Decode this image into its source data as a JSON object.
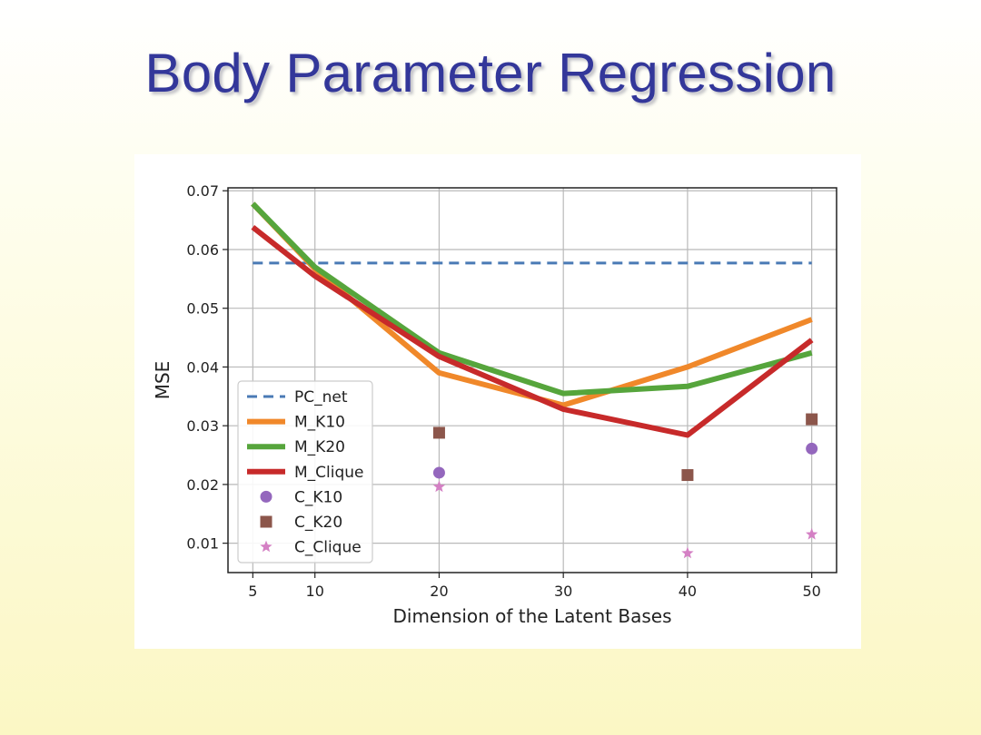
{
  "slide": {
    "title": "Body Parameter Regression"
  },
  "chart_data": {
    "type": "line",
    "xlabel": "Dimension of the Latent Bases",
    "ylabel": "MSE",
    "x_ticks": [
      5,
      10,
      20,
      30,
      40,
      50
    ],
    "y_ticks": [
      0.01,
      0.02,
      0.03,
      0.04,
      0.05,
      0.06,
      0.07
    ],
    "y_tick_labels": [
      "0.01",
      "0.02",
      "0.03",
      "0.04",
      "0.05",
      "0.06",
      "0.07"
    ],
    "xlim": [
      3,
      52
    ],
    "ylim": [
      0.005,
      0.0705
    ],
    "grid": true,
    "legend_position": "lower-left",
    "series": [
      {
        "name": "PC_net",
        "style": "dashed-line",
        "color": "#4a7ab5",
        "x": [
          5,
          50
        ],
        "values": [
          0.0577,
          0.0577
        ]
      },
      {
        "name": "M_K10",
        "style": "line",
        "color": "#f0882a",
        "x": [
          5,
          10,
          20,
          30,
          40,
          50
        ],
        "values": [
          0.0678,
          0.0567,
          0.039,
          0.0335,
          0.04,
          0.0481
        ]
      },
      {
        "name": "M_K20",
        "style": "line",
        "color": "#56a53c",
        "x": [
          5,
          10,
          20,
          30,
          40,
          50
        ],
        "values": [
          0.0678,
          0.057,
          0.0424,
          0.0355,
          0.0367,
          0.0424
        ]
      },
      {
        "name": "M_Clique",
        "style": "line",
        "color": "#c72a2a",
        "x": [
          5,
          10,
          20,
          30,
          40,
          50
        ],
        "values": [
          0.0638,
          0.0555,
          0.0418,
          0.0328,
          0.0284,
          0.0446
        ]
      },
      {
        "name": "C_K10",
        "style": "circle-marker",
        "color": "#9467bd",
        "x": [
          20,
          50
        ],
        "values": [
          0.022,
          0.0261
        ]
      },
      {
        "name": "C_K20",
        "style": "square-marker",
        "color": "#8c564b",
        "x": [
          20,
          40,
          50
        ],
        "values": [
          0.0288,
          0.0216,
          0.0311
        ]
      },
      {
        "name": "C_Clique",
        "style": "star-marker",
        "color": "#d480c4",
        "x": [
          20,
          40,
          50
        ],
        "values": [
          0.0196,
          0.0083,
          0.0115
        ]
      }
    ]
  }
}
